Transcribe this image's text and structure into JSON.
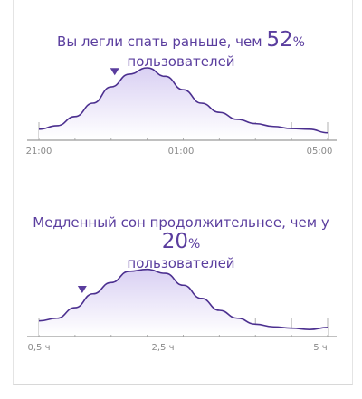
{
  "cards": [
    {
      "title_start": "Вы легли спать раньше, чем",
      "percent": 52,
      "percent_sign": "%",
      "title_end": "пользователей",
      "curve": [
        13,
        18,
        31,
        50,
        73,
        91,
        100,
        88,
        69,
        50,
        37,
        27,
        21,
        17,
        14,
        13,
        8
      ],
      "marker_position": 4.2,
      "axis_labels": [
        "21:00",
        "01:00",
        "05:00"
      ]
    },
    {
      "title_start": "Медленный сон продолжительнее, чем у",
      "percent": 20,
      "percent_sign": "%",
      "title_end": "пользователей",
      "curve": [
        21,
        25,
        41,
        62,
        79,
        96,
        99,
        93,
        75,
        55,
        37,
        25,
        16,
        12,
        10,
        8,
        11
      ],
      "marker_position": 2.4,
      "axis_labels": [
        "0,5 ч",
        "2,5 ч",
        "5 ч"
      ]
    }
  ]
}
